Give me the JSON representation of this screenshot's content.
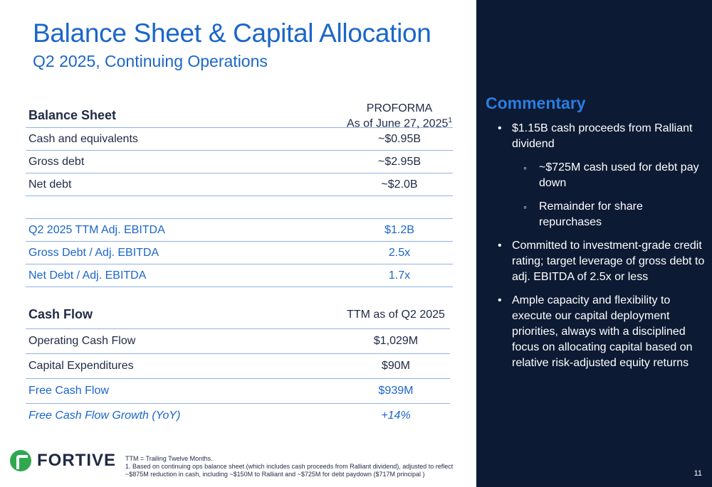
{
  "title": "Balance Sheet & Capital Allocation",
  "subtitle": "Q2 2025, Continuing Operations",
  "balance_sheet": {
    "header_label": "Balance Sheet",
    "header_col_line1": "PROFORMA",
    "header_col_line2": "As of June 27, 2025",
    "header_sup": "1",
    "rows": [
      {
        "label": "Cash and equivalents",
        "value": "~$0.95B"
      },
      {
        "label": "Gross debt",
        "value": "~$2.95B"
      },
      {
        "label": "Net debt",
        "value": "~$2.0B"
      }
    ],
    "ebitda_rows": [
      {
        "label": "Q2 2025 TTM Adj. EBITDA",
        "value": "$1.2B"
      },
      {
        "label": "Gross Debt / Adj. EBITDA",
        "value": "2.5x"
      },
      {
        "label": "Net Debt / Adj. EBITDA",
        "value": "1.7x"
      }
    ]
  },
  "cash_flow": {
    "header_label": "Cash Flow",
    "header_col": "TTM as of Q2 2025",
    "rows": [
      {
        "label": "Operating Cash Flow",
        "value": "$1,029M"
      },
      {
        "label": "Capital Expenditures",
        "value": "$90M"
      },
      {
        "label": "Free Cash Flow",
        "value": "$939M"
      },
      {
        "label": "Free Cash Flow Growth (YoY)",
        "value": "+14%"
      }
    ]
  },
  "logo_text": "FORTIVE",
  "footnote": {
    "line1": "TTM = Trailing Twelve Months.",
    "line2": "1. Based on continuing ops balance sheet (which includes cash proceeds from Ralliant dividend), adjusted to reflect ~$875M reduction in cash, including ~$150M to Ralliant and ~$725M for debt paydown ($717M principal )"
  },
  "commentary": {
    "title": "Commentary",
    "b1": "$1.15B cash proceeds from Ralliant dividend",
    "b1_sub1": "~$725M cash used for debt pay down",
    "b1_sub2": "Remainder for share repurchases",
    "b2": "Committed to investment-grade credit rating; target leverage of gross debt to adj. EBITDA of 2.5x or less",
    "b3": "Ample capacity and flexibility to execute our capital deployment priorities, always with a disciplined focus on allocating capital based on relative risk-adjusted equity returns"
  },
  "page_number": "11",
  "colors": {
    "accent": "#1b66c9",
    "panel": "#0d1a33",
    "logo_green": "#2fa84f"
  }
}
